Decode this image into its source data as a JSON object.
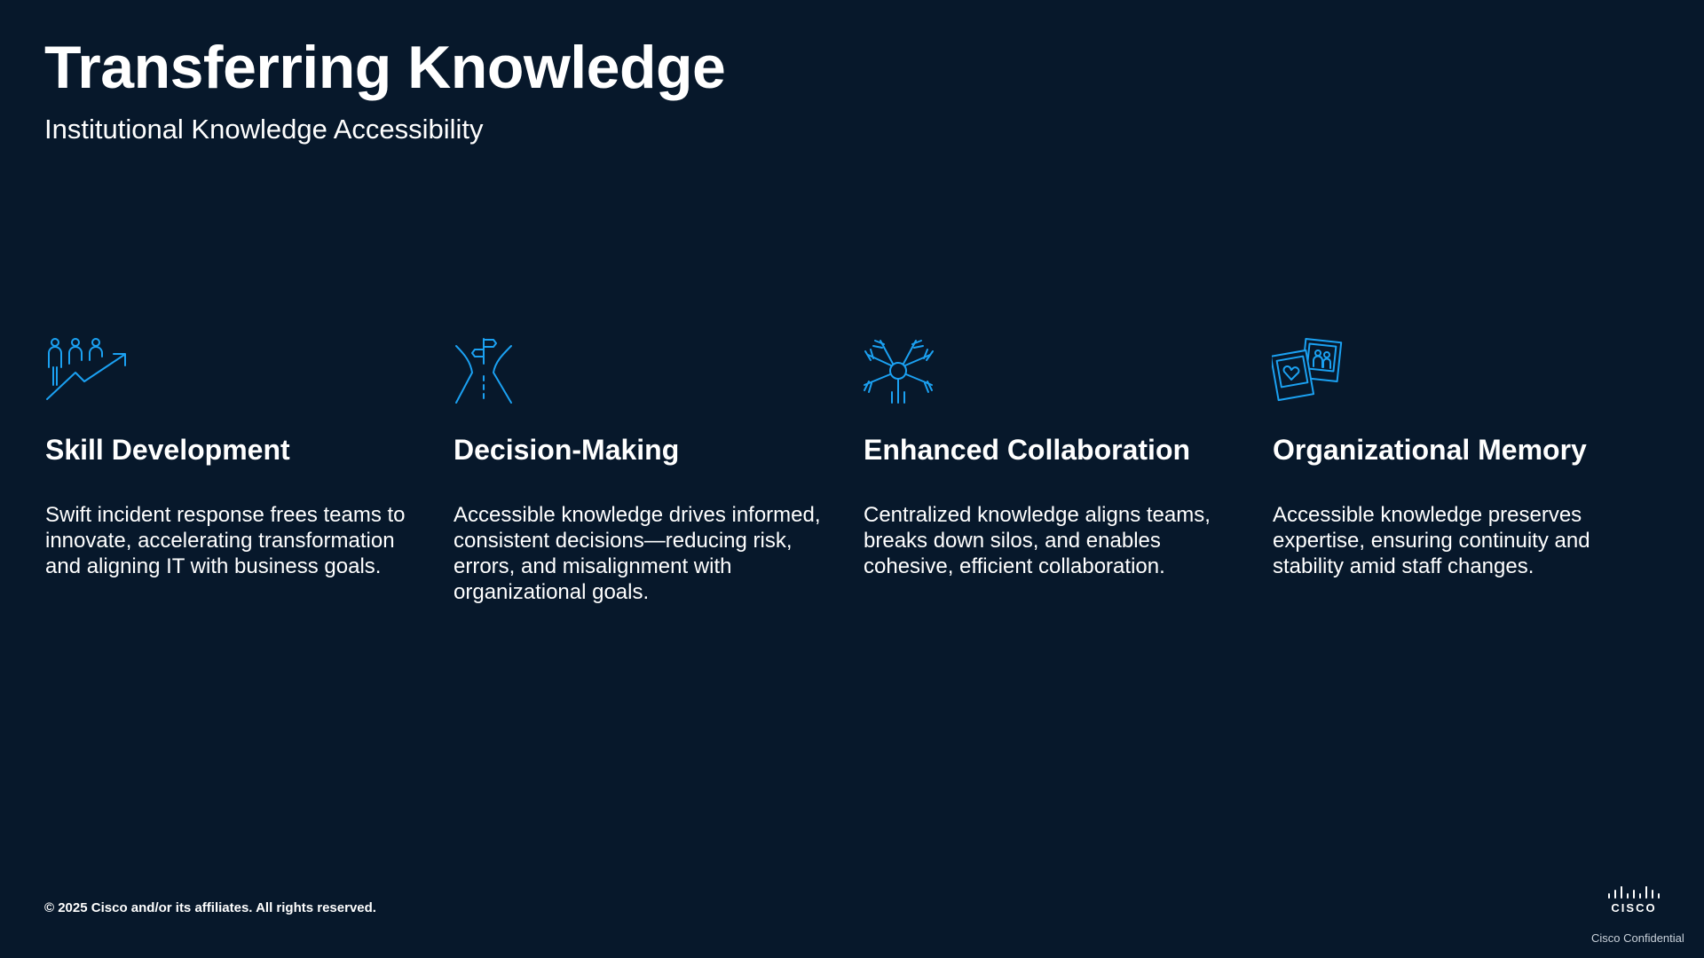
{
  "slide": {
    "title": "Transferring Knowledge",
    "subtitle": "Institutional Knowledge Accessibility",
    "accent_color": "#1ba1f2",
    "background_color": "#07182b"
  },
  "columns": [
    {
      "icon": "team-growth-icon",
      "title": "Skill Development",
      "body": "Swift incident response frees teams to innovate, accelerating transformation and aligning IT with business goals."
    },
    {
      "icon": "crossroads-signpost-icon",
      "title": "Decision-Making",
      "body": "Accessible knowledge drives informed, consistent decisions—reducing risk, errors, and misalignment with organizational goals."
    },
    {
      "icon": "joined-hands-icon",
      "title": "Enhanced Collaboration",
      "body": "Centralized knowledge aligns teams, breaks down silos, and enables cohesive, efficient collaboration."
    },
    {
      "icon": "photo-memories-icon",
      "title": "Organizational Memory",
      "body": "Accessible knowledge preserves expertise, ensuring continuity and stability amid staff changes."
    }
  ],
  "footer": {
    "copyright": "© 2025 Cisco and/or its affiliates. All rights reserved.",
    "logo_text": "CISCO",
    "confidential": "Cisco Confidential"
  }
}
